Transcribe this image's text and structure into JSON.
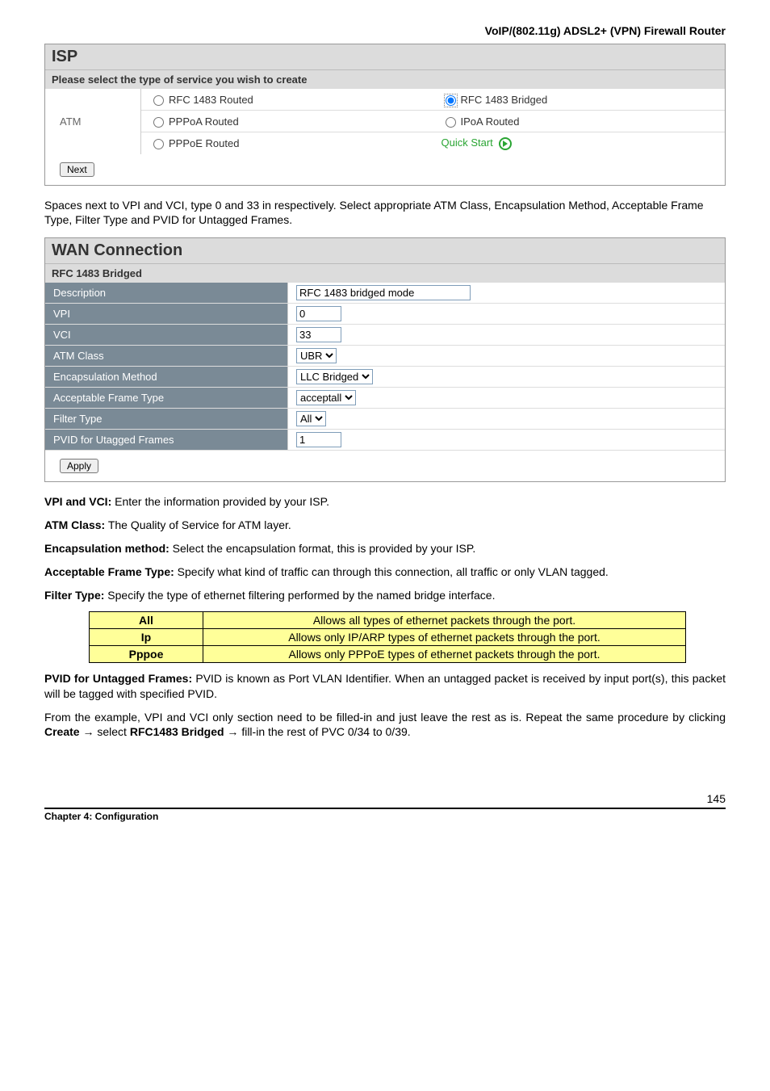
{
  "header": {
    "title": "VoIP/(802.11g) ADSL2+ (VPN) Firewall Router"
  },
  "isp_panel": {
    "title": "ISP",
    "subtitle": "Please select the type of service you wish to create",
    "left_label": "ATM",
    "options": {
      "rfc_routed": "RFC 1483 Routed",
      "rfc_bridged": "RFC 1483 Bridged",
      "pppoa": "PPPoA Routed",
      "ipoa": "IPoA Routed",
      "pppoe": "PPPoE Routed",
      "quick": "Quick Start"
    },
    "next_btn": "Next"
  },
  "para1": "Spaces next to VPI and VCI, type 0 and 33 in respectively. Select appropriate ATM Class, Encapsulation Method, Acceptable Frame Type, Filter Type and PVID for Untagged Frames.",
  "wan_panel": {
    "title": "WAN Connection",
    "subtitle": "RFC 1483 Bridged",
    "rows": {
      "description": {
        "label": "Description",
        "value": "RFC 1483 bridged mode"
      },
      "vpi": {
        "label": "VPI",
        "value": "0"
      },
      "vci": {
        "label": "VCI",
        "value": "33"
      },
      "atm_class": {
        "label": "ATM Class",
        "value": "UBR"
      },
      "encap": {
        "label": "Encapsulation Method",
        "value": "LLC Bridged"
      },
      "frame": {
        "label": "Acceptable Frame Type",
        "value": "acceptall"
      },
      "filter": {
        "label": "Filter Type",
        "value": "All"
      },
      "pvid": {
        "label": "PVID for Utagged Frames",
        "value": "1"
      }
    },
    "apply_btn": "Apply"
  },
  "defs": {
    "vpi_vci": {
      "b": "VPI and VCI:",
      "t": " Enter the information provided by your ISP."
    },
    "atm": {
      "b": "ATM Class:",
      "t": " The Quality of Service for ATM layer."
    },
    "encap": {
      "b": "Encapsulation method:",
      "t": " Select the encapsulation format, this is provided by your ISP."
    },
    "frame": {
      "b": "Acceptable Frame Type:",
      "t": " Specify what kind of traffic can through this connection, all traffic or only VLAN tagged."
    },
    "filter": {
      "b": "Filter Type:",
      "t": " Specify the type of ethernet filtering performed by the named bridge interface."
    }
  },
  "filter_table": {
    "rows": [
      {
        "h": "All",
        "v": "Allows all types of ethernet packets through the port."
      },
      {
        "h": "Ip",
        "v": "Allows only IP/ARP types of ethernet packets through the port."
      },
      {
        "h": "Pppoe",
        "v": "Allows only PPPoE types of ethernet packets through the port."
      }
    ]
  },
  "pvid_def": {
    "b": "PVID for Untagged Frames:",
    "t": " PVID is known as Port VLAN Identifier.  When an untagged packet is received by input port(s), this packet will be tagged with specified PVID."
  },
  "example_para": {
    "pre": "From the example, VPI and VCI only section need to be filled-in and just leave the rest as is.    Repeat the same procedure by clicking ",
    "b1": "Create",
    "arrow1": " → select ",
    "b2": "RFC1483 Bridged",
    "arrow2": " → fill-in the rest of PVC 0/34 to 0/39."
  },
  "footer": {
    "chapter": "Chapter 4: Configuration",
    "page": "145"
  }
}
